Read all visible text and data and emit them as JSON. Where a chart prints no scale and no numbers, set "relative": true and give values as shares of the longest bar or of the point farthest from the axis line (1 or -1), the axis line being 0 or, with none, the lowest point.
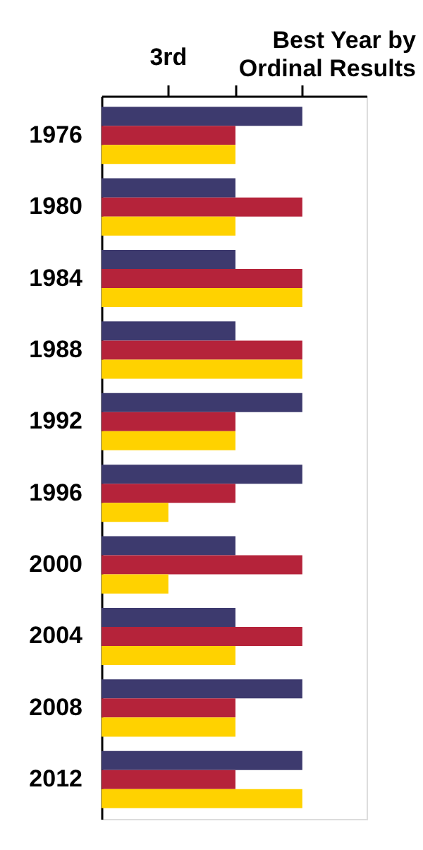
{
  "chart_data": {
    "type": "bar",
    "orientation": "horizontal",
    "relative": true,
    "title": "Best Year by Ordinal Results",
    "annotations": [
      "3rd"
    ],
    "categories": [
      "1976",
      "1980",
      "1984",
      "1988",
      "1992",
      "1996",
      "2000",
      "2004",
      "2008",
      "2012"
    ],
    "series": [
      {
        "color": "#3d3a6e",
        "values": [
          1,
          0.667,
          0.667,
          0.667,
          1,
          1,
          0.667,
          0.667,
          1,
          1
        ]
      },
      {
        "color": "#b5233a",
        "values": [
          0.667,
          1,
          1,
          1,
          0.667,
          0.667,
          1,
          1,
          0.667,
          0.667
        ]
      },
      {
        "color": "#ffd200",
        "values": [
          0.667,
          0.667,
          1,
          1,
          0.667,
          0.333,
          0.333,
          0.667,
          0.667,
          1
        ]
      }
    ],
    "grid": false,
    "legend": false
  }
}
